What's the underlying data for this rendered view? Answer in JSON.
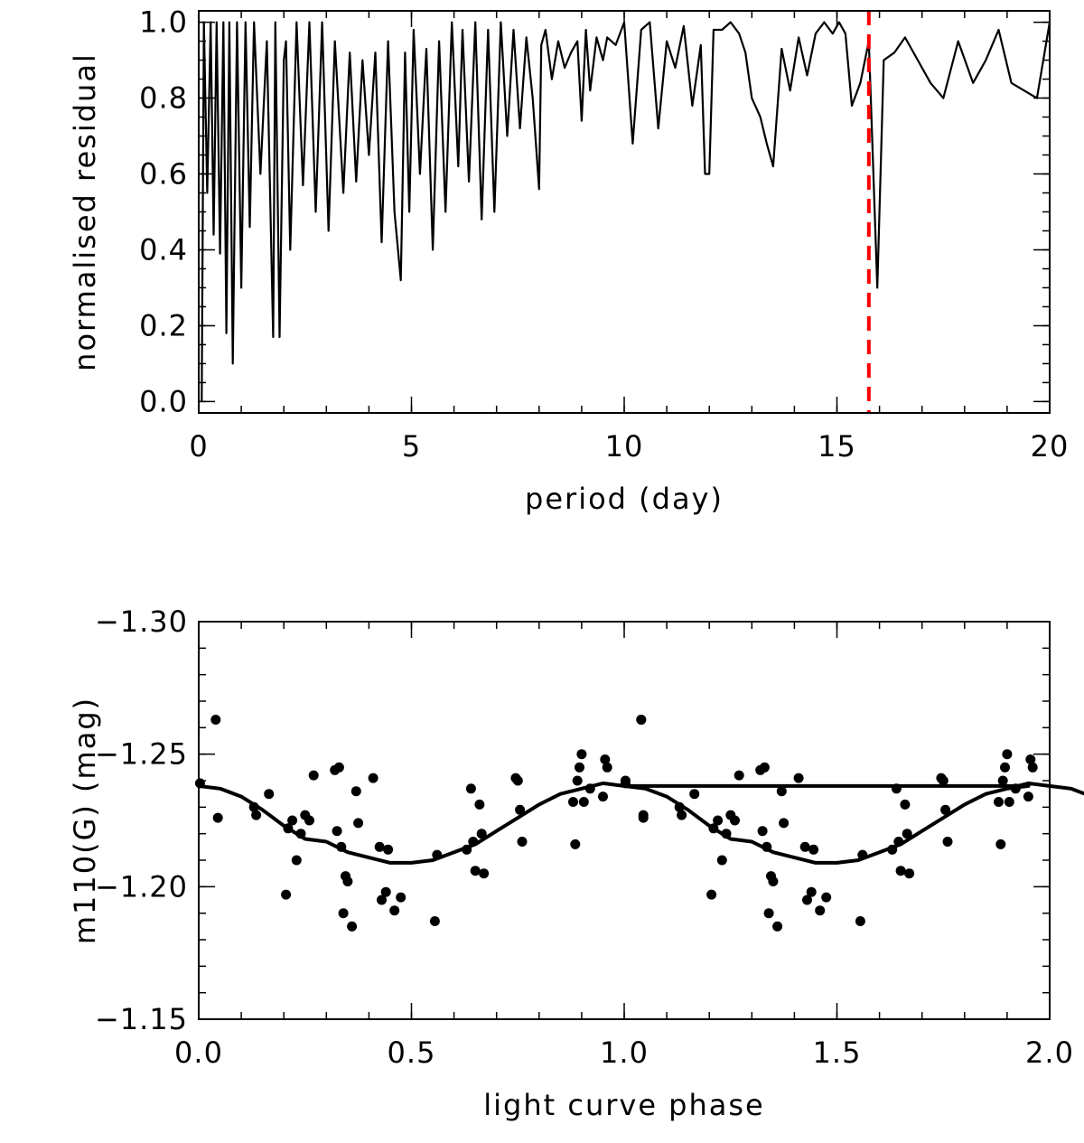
{
  "chart_data": [
    {
      "type": "line",
      "xlabel": "period (day)",
      "ylabel": "normalised residual",
      "xlim": [
        0,
        20
      ],
      "ylim": [
        -0.03,
        1.03
      ],
      "xticks": [
        0,
        5,
        10,
        15,
        20
      ],
      "xtick_labels": [
        "0",
        "5",
        "10",
        "15",
        "20"
      ],
      "yticks": [
        0.0,
        0.2,
        0.4,
        0.6,
        0.8,
        1.0
      ],
      "ytick_labels": [
        "0.0",
        "0.2",
        "0.4",
        "0.6",
        "0.8",
        "1.0"
      ],
      "x_minor_step": 1,
      "y_minor_step": 0.05,
      "grid": false,
      "series": [
        {
          "name": "residual periodogram",
          "color": "#000000",
          "x": [
            0.07,
            0.12,
            0.2,
            0.28,
            0.35,
            0.42,
            0.5,
            0.58,
            0.65,
            0.72,
            0.8,
            0.9,
            1.0,
            1.1,
            1.2,
            1.3,
            1.45,
            1.6,
            1.75,
            1.8,
            1.9,
            2.0,
            2.05,
            2.15,
            2.3,
            2.45,
            2.6,
            2.75,
            2.9,
            3.05,
            3.2,
            3.4,
            3.55,
            3.7,
            3.85,
            4.0,
            4.15,
            4.3,
            4.45,
            4.6,
            4.75,
            4.85,
            4.95,
            5.05,
            5.2,
            5.35,
            5.5,
            5.65,
            5.8,
            5.95,
            6.1,
            6.2,
            6.35,
            6.5,
            6.65,
            6.8,
            6.95,
            7.1,
            7.25,
            7.4,
            7.55,
            7.7,
            7.85,
            8.0,
            8.05,
            8.15,
            8.3,
            8.45,
            8.6,
            8.75,
            8.9,
            9.0,
            9.1,
            9.2,
            9.35,
            9.5,
            9.6,
            9.8,
            10.0,
            10.2,
            10.4,
            10.6,
            10.8,
            11.0,
            11.2,
            11.4,
            11.6,
            11.8,
            11.9,
            12.0,
            12.1,
            12.3,
            12.5,
            12.7,
            12.85,
            13.0,
            13.2,
            13.35,
            13.5,
            13.7,
            13.9,
            14.1,
            14.3,
            14.5,
            14.7,
            14.9,
            15.05,
            15.2,
            15.35,
            15.55,
            15.75,
            15.95,
            16.1,
            16.35,
            16.6,
            16.9,
            17.2,
            17.5,
            17.85,
            18.2,
            18.5,
            18.8,
            19.1,
            19.4,
            19.7,
            20.0
          ],
          "y": [
            0.0,
            1.0,
            0.55,
            1.0,
            0.44,
            1.0,
            0.39,
            1.0,
            0.18,
            1.0,
            0.1,
            1.0,
            0.3,
            1.0,
            0.46,
            1.0,
            0.6,
            0.95,
            0.17,
            1.0,
            0.17,
            0.9,
            0.95,
            0.4,
            1.0,
            0.57,
            1.0,
            0.5,
            1.0,
            0.45,
            0.95,
            0.55,
            0.92,
            0.58,
            0.9,
            0.65,
            0.92,
            0.42,
            0.95,
            0.5,
            0.32,
            0.92,
            0.5,
            0.98,
            0.6,
            0.93,
            0.4,
            0.95,
            0.5,
            1.0,
            0.62,
            0.98,
            0.58,
            1.0,
            0.48,
            0.98,
            0.5,
            1.0,
            0.7,
            0.98,
            0.72,
            0.96,
            0.8,
            0.56,
            0.94,
            0.98,
            0.85,
            0.95,
            0.88,
            0.92,
            0.95,
            0.74,
            0.98,
            0.82,
            0.96,
            0.9,
            0.96,
            0.94,
            1.0,
            0.68,
            0.98,
            1.0,
            0.72,
            0.95,
            0.88,
            0.99,
            0.78,
            0.94,
            0.6,
            0.6,
            0.98,
            0.98,
            1.0,
            0.97,
            0.92,
            0.8,
            0.75,
            0.68,
            0.62,
            0.93,
            0.82,
            0.96,
            0.86,
            0.97,
            1.0,
            0.97,
            1.0,
            0.97,
            0.78,
            0.84,
            0.95,
            0.3,
            0.9,
            0.92,
            0.96,
            0.9,
            0.84,
            0.8,
            0.95,
            0.84,
            0.9,
            0.98,
            0.84,
            0.82,
            0.8,
            1.0
          ]
        }
      ],
      "annotations": [
        {
          "type": "vline",
          "x": 15.75,
          "color": "#ff0000",
          "style": "dashed"
        }
      ]
    },
    {
      "type": "scatter",
      "xlabel": "light curve phase",
      "ylabel": "m110(G) (mag)",
      "xlim": [
        0,
        2
      ],
      "ylim": [
        -1.15,
        -1.3
      ],
      "xticks": [
        0.0,
        0.5,
        1.0,
        1.5,
        2.0
      ],
      "xtick_labels": [
        "0.0",
        "0.5",
        "1.0",
        "1.5",
        "2.0"
      ],
      "yticks": [
        -1.15,
        -1.2,
        -1.25,
        -1.3
      ],
      "ytick_labels": [
        "−1.15",
        "−1.20",
        "−1.25",
        "−1.30"
      ],
      "x_minor_step": 0.1,
      "y_minor_step": 0.01,
      "grid": false,
      "series": [
        {
          "name": "observations",
          "color": "#000000",
          "x": [
            0.003,
            0.04,
            0.045,
            0.13,
            0.135,
            0.165,
            0.205,
            0.21,
            0.22,
            0.23,
            0.24,
            0.25,
            0.26,
            0.27,
            0.32,
            0.325,
            0.33,
            0.335,
            0.34,
            0.345,
            0.35,
            0.36,
            0.37,
            0.375,
            0.41,
            0.425,
            0.43,
            0.44,
            0.445,
            0.46,
            0.475,
            0.555,
            0.56,
            0.63,
            0.64,
            0.645,
            0.65,
            0.66,
            0.665,
            0.67,
            0.745,
            0.75,
            0.755,
            0.76,
            0.88,
            0.885,
            0.89,
            0.895,
            0.9,
            0.905,
            0.92,
            0.95,
            0.955,
            0.96,
            1.003,
            1.04,
            1.045
          ],
          "y": [
            -1.239,
            -1.263,
            -1.226,
            -1.23,
            -1.227,
            -1.235,
            -1.197,
            -1.222,
            -1.225,
            -1.21,
            -1.22,
            -1.227,
            -1.225,
            -1.242,
            -1.244,
            -1.221,
            -1.245,
            -1.215,
            -1.19,
            -1.204,
            -1.202,
            -1.185,
            -1.236,
            -1.224,
            -1.241,
            -1.215,
            -1.195,
            -1.198,
            -1.214,
            -1.191,
            -1.196,
            -1.187,
            -1.212,
            -1.214,
            -1.237,
            -1.217,
            -1.206,
            -1.231,
            -1.22,
            -1.205,
            -1.241,
            -1.24,
            -1.229,
            -1.217,
            -1.232,
            -1.216,
            -1.24,
            -1.245,
            -1.25,
            -1.232,
            -1.237,
            -1.234,
            -1.248,
            -1.245,
            -1.24,
            -1.263,
            -1.227
          ]
        },
        {
          "name": "sinusoidal fit",
          "color": "#000000",
          "x": [
            0.0,
            0.05,
            0.1,
            0.15,
            0.2,
            0.25,
            0.3,
            0.35,
            0.4,
            0.45,
            0.5,
            0.55,
            0.6,
            0.65,
            0.7,
            0.75,
            0.8,
            0.85,
            0.9,
            0.95,
            1.0,
            1.05,
            1.1,
            1.15,
            1.2,
            1.25,
            1.3,
            1.35,
            1.4,
            1.45,
            1.5,
            1.55,
            1.6,
            1.65,
            1.7,
            1.75,
            1.8,
            1.85,
            1.9,
            1.95
          ],
          "y": [
            -1.238,
            -1.237,
            -1.234,
            -1.229,
            -1.223,
            -1.218,
            -1.217,
            -1.213,
            -1.211,
            -1.209,
            -1.209,
            -1.21,
            -1.213,
            -1.216,
            -1.221,
            -1.226,
            -1.231,
            -1.235,
            -1.237,
            -1.239,
            -1.238,
            -1.237,
            -1.234,
            -1.229,
            -1.223,
            -1.218,
            -1.217,
            -1.213,
            -1.211,
            -1.209,
            -1.209,
            -1.21,
            -1.213,
            -1.216,
            -1.221,
            -1.226,
            -1.231,
            -1.235,
            -1.237,
            -1.238
          ]
        }
      ]
    }
  ]
}
